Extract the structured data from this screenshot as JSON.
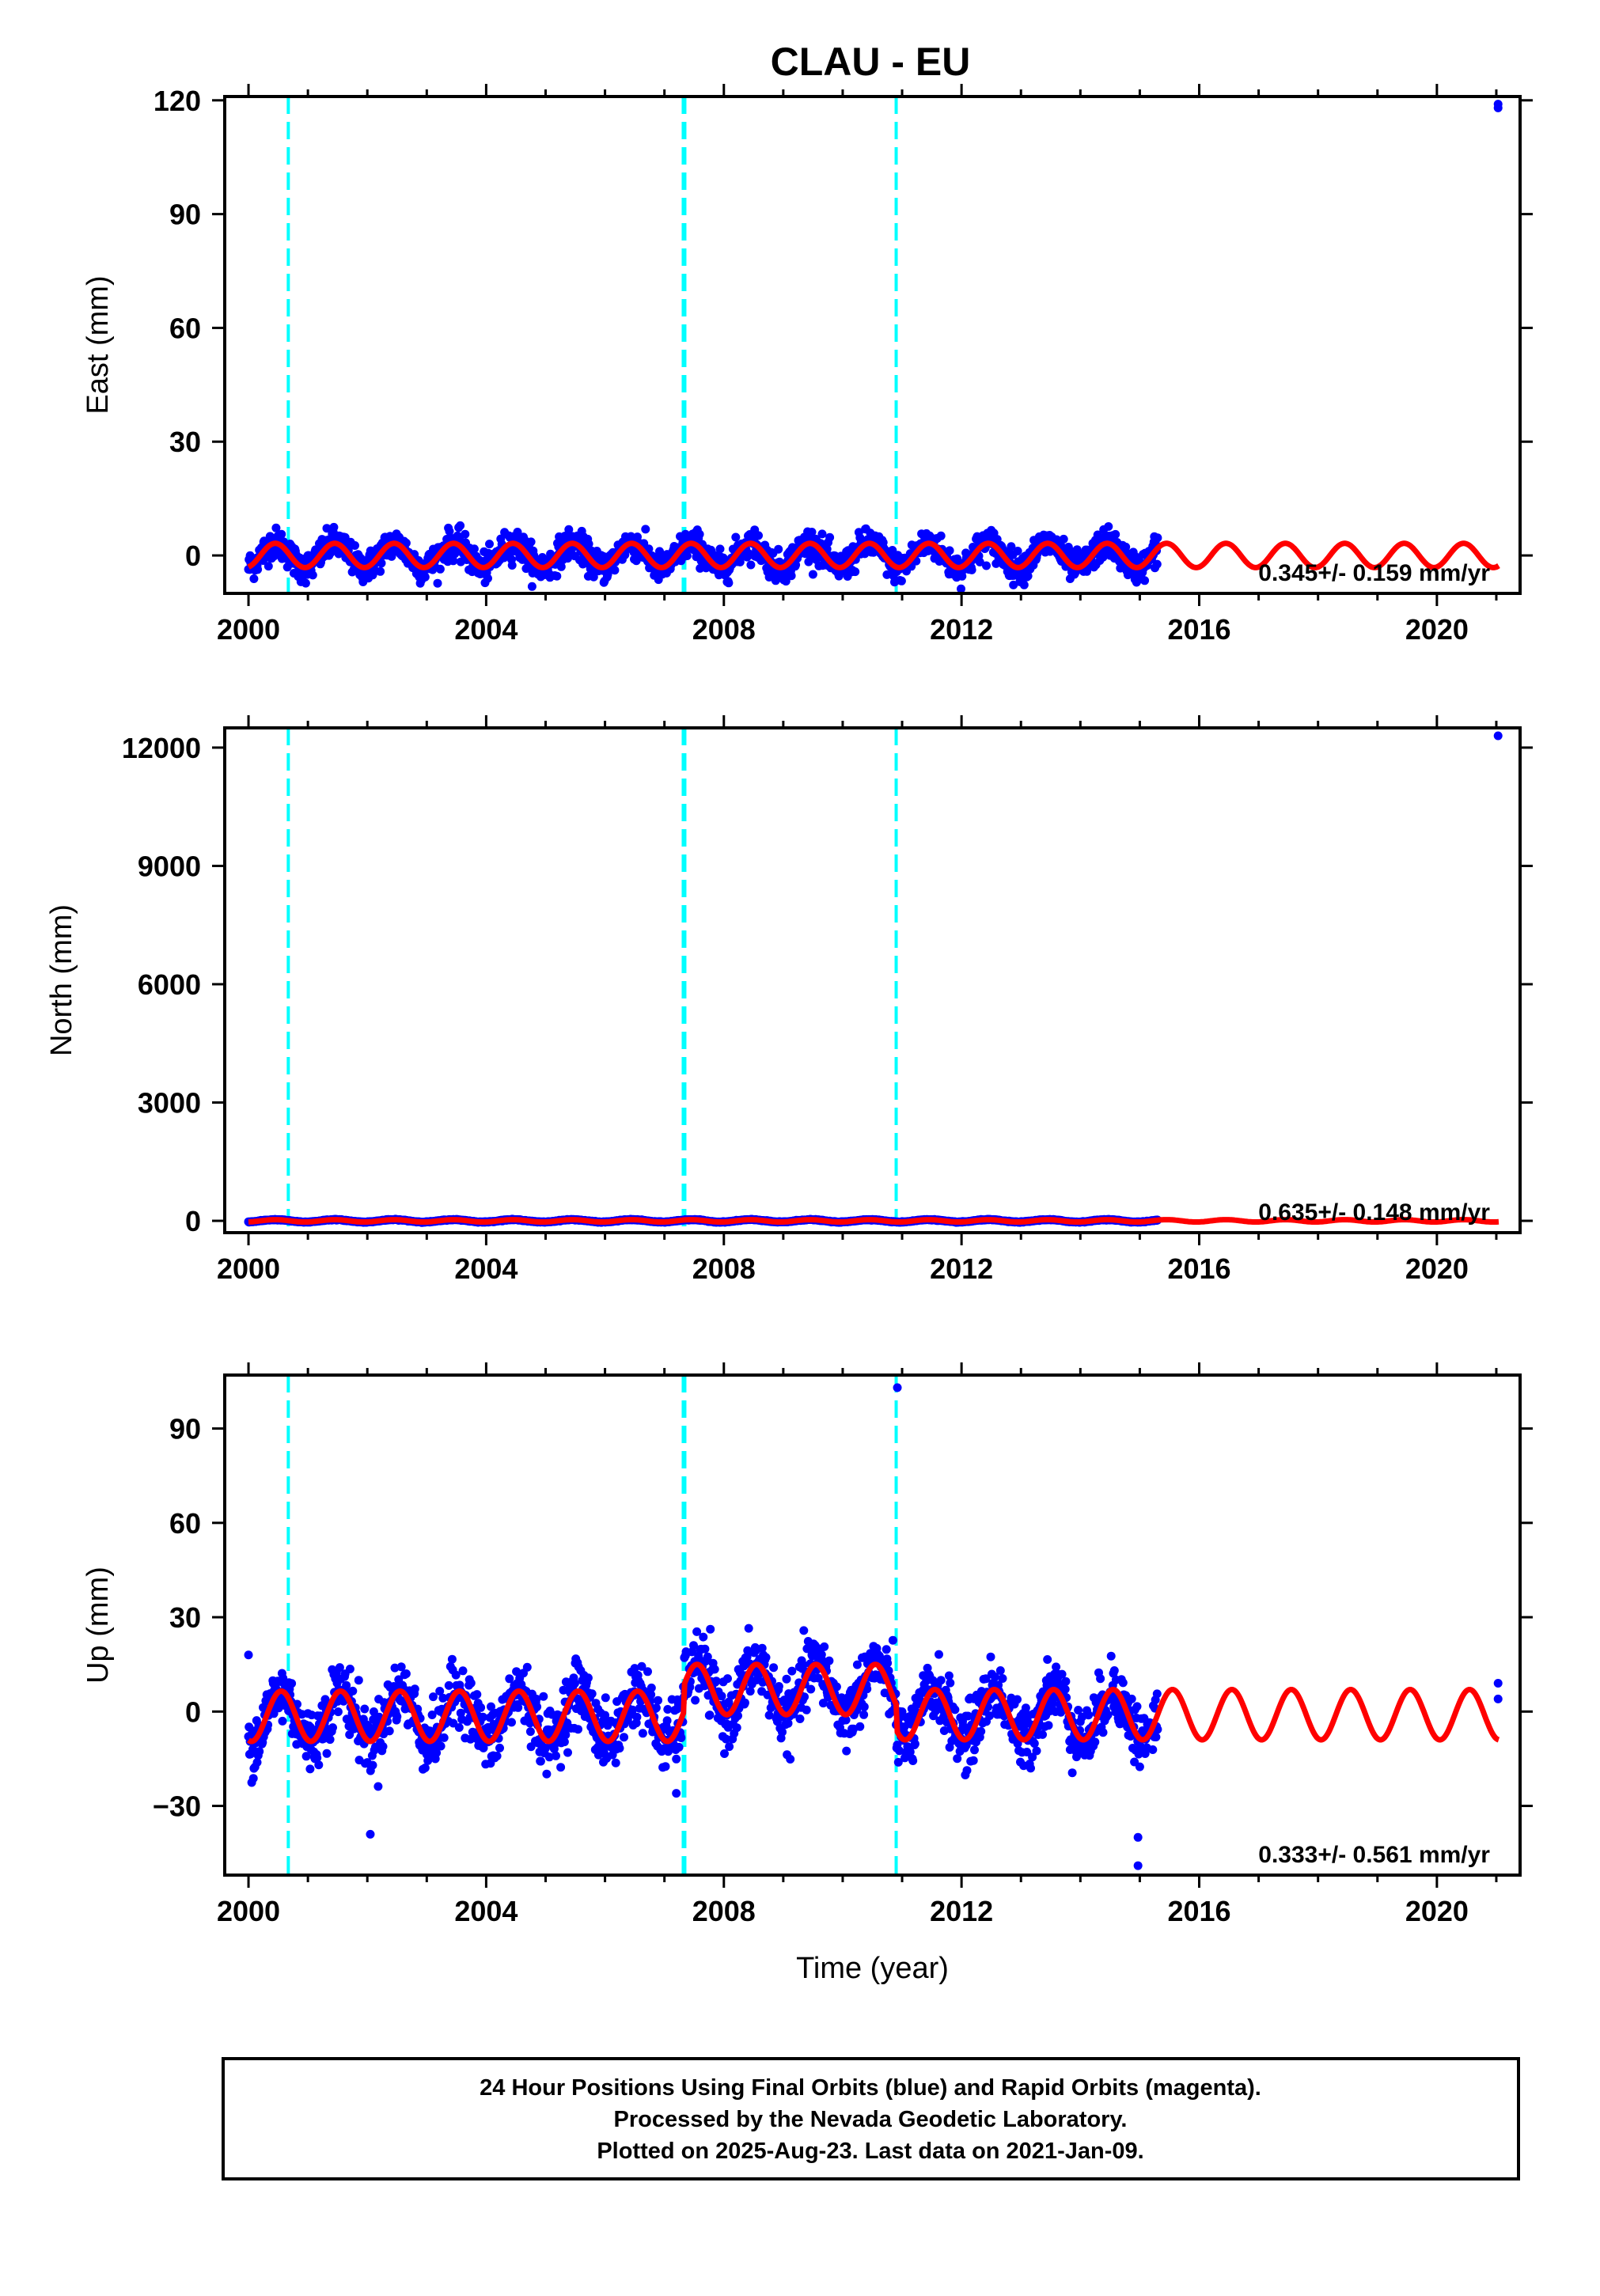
{
  "title": "CLAU - EU",
  "caption": [
    "24 Hour Positions Using Final Orbits (blue) and Rapid Orbits (magenta).",
    "Processed by the Nevada Geodetic Laboratory.",
    "Plotted on 2025-Aug-23. Last data on 2021-Jan-09."
  ],
  "colors": {
    "data": "#0000ff",
    "model": "#ff0000",
    "offset": "#00ffff",
    "frame": "#000000"
  },
  "chart_data": [
    {
      "type": "scatter",
      "ylabel": "East (mm)",
      "xlabel": "",
      "xlim": [
        1999.6,
        2021.4
      ],
      "ylim": [
        -10,
        121
      ],
      "xticks": [
        2000,
        2004,
        2008,
        2012,
        2016,
        2020
      ],
      "yticks": [
        0,
        30,
        60,
        90,
        120
      ],
      "rate": "0.345+/- 0.159 mm/yr",
      "offsets": [
        2000.67,
        2007.33,
        2010.9
      ],
      "data_range": [
        2000.0,
        2015.3
      ],
      "model": {
        "mean": 0,
        "amplitude": 3.2,
        "phase": 0.2,
        "steps": []
      },
      "scatter_sd": 2.0,
      "outliers": [
        [
          2021.03,
          118.0
        ],
        [
          2021.03,
          119.0
        ]
      ]
    },
    {
      "type": "scatter",
      "ylabel": "North (mm)",
      "xlabel": "",
      "xlim": [
        1999.6,
        2021.4
      ],
      "ylim": [
        -300,
        12500
      ],
      "xticks": [
        2000,
        2004,
        2008,
        2012,
        2016,
        2020
      ],
      "yticks": [
        0,
        3000,
        6000,
        9000,
        12000
      ],
      "rate": "0.635+/- 0.148 mm/yr",
      "offsets": [
        2000.67,
        2007.33,
        2010.9
      ],
      "data_range": [
        2000.0,
        2015.3
      ],
      "model": {
        "mean": 0,
        "amplitude": 30,
        "phase": 0.2,
        "steps": []
      },
      "scatter_sd": 5,
      "outliers": [
        [
          2021.03,
          12300
        ]
      ]
    },
    {
      "type": "scatter",
      "ylabel": "Up (mm)",
      "xlabel": "Time (year)",
      "xlim": [
        1999.6,
        2021.4
      ],
      "ylim": [
        -52,
        107
      ],
      "xticks": [
        2000,
        2004,
        2008,
        2012,
        2016,
        2020
      ],
      "yticks": [
        -30,
        0,
        30,
        60,
        90
      ],
      "rate": "0.333+/- 0.561 mm/yr",
      "offsets": [
        2000.67,
        2007.33,
        2010.9
      ],
      "data_range": [
        2000.0,
        2015.3
      ],
      "model": {
        "mean": -1.5,
        "amplitude": 8.0,
        "phase": 0.3,
        "steps": [
          [
            2007.33,
            8.5
          ],
          [
            2010.9,
            -8.0
          ]
        ]
      },
      "scatter_sd": 5.0,
      "outliers": [
        [
          2010.92,
          103
        ],
        [
          2000.0,
          18
        ],
        [
          2014.97,
          -40
        ],
        [
          2014.97,
          -49
        ],
        [
          2021.03,
          9
        ],
        [
          2021.03,
          4
        ],
        [
          2002.05,
          -39
        ],
        [
          2007.2,
          -26
        ]
      ]
    }
  ]
}
